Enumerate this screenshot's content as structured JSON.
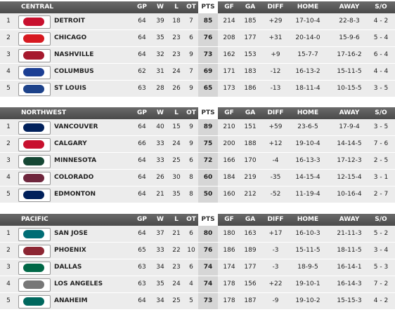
{
  "columns": [
    "GP",
    "W",
    "L",
    "OT",
    "PTS",
    "GF",
    "GA",
    "DIFF",
    "HOME",
    "AWAY",
    "S/O"
  ],
  "divisions": [
    {
      "name": "CENTRAL",
      "rows": [
        [
          1,
          "DETROIT",
          64,
          39,
          18,
          7,
          85,
          214,
          185,
          "+29",
          "17-10-4",
          "22-8-3",
          "4 - 2"
        ],
        [
          2,
          "CHICAGO",
          64,
          35,
          23,
          6,
          76,
          208,
          177,
          "+31",
          "20-14-0",
          "15-9-6",
          "5 - 4"
        ],
        [
          3,
          "NASHVILLE",
          64,
          32,
          23,
          9,
          73,
          162,
          153,
          "+9",
          "15-7-7",
          "17-16-2",
          "6 - 4"
        ],
        [
          4,
          "COLUMBUS",
          62,
          31,
          24,
          7,
          69,
          171,
          183,
          "-12",
          "16-13-2",
          "15-11-5",
          "4 - 4"
        ],
        [
          5,
          "ST LOUIS",
          63,
          28,
          26,
          9,
          65,
          173,
          186,
          "-13",
          "18-11-4",
          "10-15-5",
          "3 - 5"
        ]
      ]
    },
    {
      "name": "NORTHWEST",
      "rows": [
        [
          1,
          "VANCOUVER",
          64,
          40,
          15,
          9,
          89,
          210,
          151,
          "+59",
          "23-6-5",
          "17-9-4",
          "3 - 5"
        ],
        [
          2,
          "CALGARY",
          66,
          33,
          24,
          9,
          75,
          200,
          188,
          "+12",
          "19-10-4",
          "14-14-5",
          "7 - 6"
        ],
        [
          3,
          "MINNESOTA",
          64,
          33,
          25,
          6,
          72,
          166,
          170,
          "-4",
          "16-13-3",
          "17-12-3",
          "2 - 5"
        ],
        [
          4,
          "COLORADO",
          64,
          26,
          30,
          8,
          60,
          184,
          219,
          "-35",
          "14-15-4",
          "12-15-4",
          "3 - 1"
        ],
        [
          5,
          "EDMONTON",
          64,
          21,
          35,
          8,
          50,
          160,
          212,
          "-52",
          "11-19-4",
          "10-16-4",
          "2 - 7"
        ]
      ]
    },
    {
      "name": "PACIFIC",
      "rows": [
        [
          1,
          "SAN JOSE",
          64,
          37,
          21,
          6,
          80,
          180,
          163,
          "+17",
          "16-10-3",
          "21-11-3",
          "5 - 2"
        ],
        [
          2,
          "PHOENIX",
          65,
          33,
          22,
          10,
          76,
          186,
          189,
          "-3",
          "15-11-5",
          "18-11-5",
          "3 - 4"
        ],
        [
          3,
          "DALLAS",
          63,
          34,
          23,
          6,
          74,
          174,
          177,
          "-3",
          "18-9-5",
          "16-14-1",
          "5 - 3"
        ],
        [
          4,
          "LOS ANGELES",
          63,
          35,
          24,
          4,
          74,
          178,
          156,
          "+22",
          "19-10-1",
          "16-14-3",
          "7 - 2"
        ],
        [
          5,
          "ANAHEIM",
          64,
          34,
          25,
          5,
          73,
          178,
          187,
          "-9",
          "19-10-2",
          "15-15-3",
          "4 - 2"
        ]
      ]
    }
  ]
}
